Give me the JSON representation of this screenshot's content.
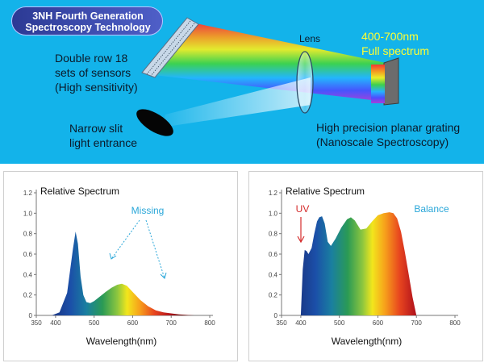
{
  "header": {
    "badge_line1": "3NH Fourth Generation",
    "badge_line2": "Spectroscopy Technology",
    "sensor_label": [
      "Double row 18",
      "sets of sensors",
      "(High sensitivity)"
    ],
    "slit_label": [
      "Narrow slit",
      "light entrance"
    ],
    "lens_label": "Lens",
    "range_label": [
      "400-700nm",
      "Full spectrum"
    ],
    "grating_label": [
      "High precision planar grating",
      "(Nanoscale Spectroscopy)"
    ]
  },
  "chart_data": [
    {
      "type": "area",
      "title": "Relative Spectrum",
      "xlabel": "Wavelength(nm)",
      "ylabel": "",
      "xlim": [
        350,
        800
      ],
      "ylim": [
        0,
        1.2
      ],
      "x_ticks": [
        350,
        400,
        500,
        600,
        700,
        800
      ],
      "y_ticks": [
        0,
        0.2,
        0.4,
        0.6,
        0.8,
        1.0,
        1.2
      ],
      "annotation": "Missing",
      "x": [
        390,
        410,
        430,
        445,
        452,
        458,
        465,
        472,
        480,
        490,
        500,
        510,
        520,
        530,
        545,
        560,
        572,
        585,
        600,
        620,
        640,
        660,
        680,
        700,
        720,
        740,
        760
      ],
      "y": [
        0.0,
        0.03,
        0.22,
        0.65,
        0.82,
        0.7,
        0.38,
        0.2,
        0.13,
        0.12,
        0.14,
        0.17,
        0.2,
        0.23,
        0.27,
        0.3,
        0.31,
        0.29,
        0.23,
        0.15,
        0.09,
        0.05,
        0.03,
        0.02,
        0.01,
        0.005,
        0.0
      ]
    },
    {
      "type": "area",
      "title": "Relative Spectrum",
      "xlabel": "Wavelength(nm)",
      "ylabel": "",
      "xlim": [
        350,
        800
      ],
      "ylim": [
        0,
        1.2
      ],
      "x_ticks": [
        350,
        400,
        500,
        600,
        700,
        800
      ],
      "y_ticks": [
        0,
        0.2,
        0.4,
        0.6,
        0.8,
        1.0,
        1.2
      ],
      "annotations": [
        "UV",
        "Balance"
      ],
      "x": [
        400,
        405,
        410,
        415,
        420,
        428,
        435,
        442,
        448,
        455,
        462,
        470,
        478,
        490,
        505,
        520,
        530,
        540,
        555,
        570,
        585,
        600,
        615,
        630,
        640,
        650,
        660,
        670,
        680,
        690,
        700
      ],
      "y": [
        0.0,
        0.45,
        0.64,
        0.63,
        0.6,
        0.66,
        0.8,
        0.92,
        0.96,
        0.97,
        0.9,
        0.72,
        0.68,
        0.75,
        0.86,
        0.94,
        0.96,
        0.93,
        0.84,
        0.85,
        0.92,
        0.98,
        1.0,
        1.01,
        1.0,
        0.95,
        0.82,
        0.62,
        0.4,
        0.18,
        0.0
      ]
    }
  ]
}
